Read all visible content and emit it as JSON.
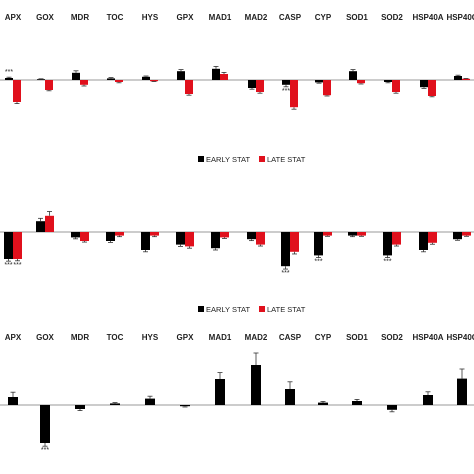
{
  "chart_data": [
    {
      "type": "bar",
      "panel": "top",
      "categories": [
        "APX",
        "GOX",
        "MDR",
        "TOC",
        "HYS",
        "GPX",
        "MAD1",
        "MAD2",
        "CASP",
        "CYP",
        "SOD1",
        "SOD2",
        "HSP40A",
        "HSP40C"
      ],
      "series": [
        {
          "name": "EARLY STAT",
          "color": "#000000",
          "values": [
            0.05,
            0.02,
            0.18,
            0.04,
            0.08,
            0.22,
            0.28,
            -0.2,
            -0.12,
            -0.06,
            0.22,
            -0.05,
            -0.18,
            0.1
          ],
          "errors": [
            0.02,
            0.01,
            0.05,
            0.02,
            0.02,
            0.04,
            0.06,
            0.03,
            0.05,
            0.02,
            0.04,
            0.02,
            0.03,
            0.02
          ]
        },
        {
          "name": "LATE STAT",
          "color": "#e0101c",
          "values": [
            -0.55,
            -0.25,
            -0.12,
            -0.05,
            -0.03,
            -0.35,
            0.15,
            -0.3,
            -0.68,
            -0.38,
            -0.08,
            -0.3,
            -0.4,
            0.03
          ],
          "errors": [
            0.04,
            0.02,
            0.03,
            0.02,
            0.01,
            0.03,
            0.04,
            0.03,
            0.05,
            0.02,
            0.02,
            0.03,
            0.02,
            0.01
          ]
        }
      ],
      "significance": [
        "***",
        "",
        "",
        "",
        "",
        "",
        "",
        "",
        "***",
        "",
        "",
        "",
        "",
        ""
      ],
      "ylim": [
        -1.0,
        0.4
      ]
    },
    {
      "type": "bar",
      "panel": "middle",
      "categories": [
        "APX",
        "GOX",
        "MDR",
        "TOC",
        "HYS",
        "GPX",
        "MAD1",
        "MAD2",
        "CASP",
        "CYP",
        "SOD1",
        "SOD2",
        "HSP40A",
        "HSP40C"
      ],
      "series": [
        {
          "name": "EARLY STAT",
          "color": "#000000",
          "values": [
            -0.75,
            0.3,
            -0.15,
            -0.25,
            -0.5,
            -0.35,
            -0.45,
            -0.2,
            -0.95,
            -0.65,
            -0.1,
            -0.65,
            -0.5,
            -0.2
          ],
          "errors": [
            0.06,
            0.08,
            0.04,
            0.04,
            0.05,
            0.05,
            0.05,
            0.04,
            0.08,
            0.06,
            0.03,
            0.06,
            0.05,
            0.03
          ]
        },
        {
          "name": "LATE STAT",
          "color": "#e0101c",
          "values": [
            -0.75,
            0.45,
            -0.25,
            -0.1,
            -0.1,
            -0.4,
            -0.15,
            -0.35,
            -0.55,
            -0.1,
            -0.1,
            -0.35,
            -0.3,
            -0.1
          ],
          "errors": [
            0.05,
            0.12,
            0.03,
            0.03,
            0.03,
            0.05,
            0.03,
            0.04,
            0.06,
            0.02,
            0.02,
            0.04,
            0.04,
            0.02
          ]
        }
      ],
      "significance_early": [
        "***",
        "",
        "",
        "",
        "",
        "",
        "",
        "",
        "***",
        "***",
        "",
        "***",
        "",
        ""
      ],
      "significance_late": [
        "***",
        "",
        "",
        "",
        "",
        "",
        "",
        "",
        "",
        "",
        "",
        "",
        "",
        ""
      ],
      "ylim": [
        -1.2,
        0.6
      ]
    },
    {
      "type": "bar",
      "panel": "bottom",
      "categories": [
        "APX",
        "GOX",
        "MDR",
        "TOC",
        "HYS",
        "GPX",
        "MAD1",
        "MAD2",
        "CASP",
        "CYP",
        "SOD1",
        "SOD2",
        "HSP40A",
        "HSP40C"
      ],
      "series": [
        {
          "name": "",
          "color": "#000000",
          "values": [
            0.2,
            -0.95,
            -0.1,
            0.04,
            0.16,
            -0.03,
            0.65,
            1.0,
            0.4,
            0.06,
            0.1,
            -0.12,
            0.25,
            0.66
          ],
          "errors": [
            0.12,
            0.08,
            0.04,
            0.02,
            0.06,
            0.02,
            0.16,
            0.3,
            0.18,
            0.03,
            0.04,
            0.05,
            0.08,
            0.24
          ]
        }
      ],
      "significance": [
        "",
        "***",
        "",
        "",
        "",
        "",
        "",
        "",
        "",
        "",
        "",
        "",
        "",
        ""
      ],
      "ylim": [
        -1.2,
        1.3
      ]
    }
  ],
  "panels_text": {
    "top": {
      "labels": [
        "APX",
        "GOX",
        "MDR",
        "TOC",
        "HYS",
        "GPX",
        "MAD1",
        "MAD2",
        "CASP",
        "CYP",
        "SOD1",
        "SOD2",
        "HSP40A",
        "HSP40C"
      ],
      "legend": [
        "EARLY STAT",
        "LATE STAT"
      ]
    },
    "middle": {
      "legend": [
        "EARLY STAT",
        "LATE STAT"
      ]
    },
    "bottom": {
      "labels": [
        "APX",
        "GOX",
        "MDR",
        "TOC",
        "HYS",
        "GPX",
        "MAD1",
        "MAD2",
        "CASP",
        "CYP",
        "SOD1",
        "SOD2",
        "HSP40A",
        "HSP40C"
      ]
    }
  }
}
